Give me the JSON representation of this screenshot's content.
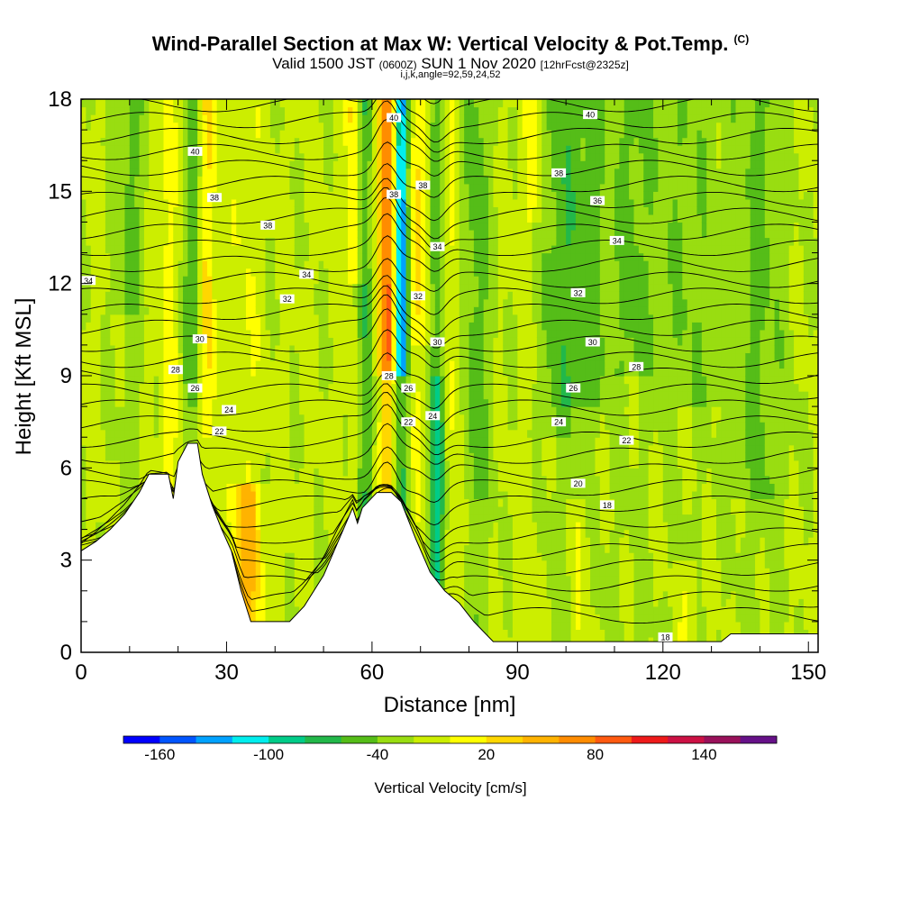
{
  "header": {
    "title": "Wind-Parallel Section at Max W: Vertical Velocity & Pot.Temp.",
    "title_mark": "(C)",
    "subtitle_a": "Valid 1500 JST ",
    "subtitle_b": "(0600Z)",
    "subtitle_c": " SUN 1 Nov 2020 ",
    "subtitle_d": "[12hrFcst@2325z]",
    "params": "i,j,k,angle=92,59,24,52"
  },
  "colorbar": {
    "title": "Vertical Velocity [cm/s]",
    "colors": [
      "#0000ff",
      "#0055ff",
      "#00a2ff",
      "#00eeee",
      "#00cc88",
      "#22b84a",
      "#55bd18",
      "#99dd11",
      "#ccee00",
      "#ffff00",
      "#ffd700",
      "#ffb300",
      "#ff8c00",
      "#ff5a10",
      "#ee1a1a",
      "#cc1144",
      "#99115a",
      "#661188"
    ],
    "tick_labels": [
      "-160",
      "-100",
      "-40",
      "20",
      "80",
      "140"
    ]
  },
  "chart_data": {
    "type": "heatmap",
    "title": "Wind-Parallel Section at Max W: Vertical Velocity & Pot.Temp.",
    "xlabel": "Distance [nm]",
    "ylabel": "Height [Kft MSL]",
    "xlim": [
      0,
      152
    ],
    "ylim": [
      0,
      18
    ],
    "x_ticks": [
      0,
      30,
      60,
      90,
      120,
      150
    ],
    "y_ticks": [
      0,
      3,
      6,
      9,
      12,
      15,
      18
    ],
    "legend": "bottom",
    "fill_variable": "Vertical Velocity [cm/s]",
    "fill_levels": [
      -160,
      -140,
      -120,
      -100,
      -80,
      -60,
      -40,
      -20,
      0,
      20,
      40,
      60,
      80,
      100,
      120,
      140,
      160
    ],
    "terrain_kft": [
      [
        0,
        3.3
      ],
      [
        3,
        3.6
      ],
      [
        6,
        4.0
      ],
      [
        9,
        4.5
      ],
      [
        12,
        5.2
      ],
      [
        14,
        5.8
      ],
      [
        18,
        5.8
      ],
      [
        19,
        5.0
      ],
      [
        20,
        6.2
      ],
      [
        22,
        6.8
      ],
      [
        24,
        6.8
      ],
      [
        25,
        5.8
      ],
      [
        27,
        4.8
      ],
      [
        29,
        4.0
      ],
      [
        31,
        3.3
      ],
      [
        33,
        2.0
      ],
      [
        35,
        1.0
      ],
      [
        40,
        1.0
      ],
      [
        43,
        1.0
      ],
      [
        46,
        1.5
      ],
      [
        50,
        2.5
      ],
      [
        53,
        3.6
      ],
      [
        56,
        4.7
      ],
      [
        57,
        4.2
      ],
      [
        58,
        4.7
      ],
      [
        61,
        5.2
      ],
      [
        64,
        5.2
      ],
      [
        66,
        4.9
      ],
      [
        69,
        3.7
      ],
      [
        72,
        2.6
      ],
      [
        75,
        2.0
      ],
      [
        78,
        1.6
      ],
      [
        81,
        1.0
      ],
      [
        85,
        0.35
      ],
      [
        90,
        0.35
      ],
      [
        100,
        0.35
      ],
      [
        120,
        0.35
      ],
      [
        132,
        0.35
      ],
      [
        134,
        0.6
      ],
      [
        140,
        0.6
      ],
      [
        146,
        0.6
      ],
      [
        152,
        0.6
      ]
    ],
    "isentrope_labels": [
      {
        "x": 64.5,
        "y": 17.4,
        "label": "40"
      },
      {
        "x": 105,
        "y": 17.5,
        "label": "40"
      },
      {
        "x": 23.5,
        "y": 16.3,
        "label": "40"
      },
      {
        "x": 27.5,
        "y": 14.8,
        "label": "38"
      },
      {
        "x": 38.5,
        "y": 13.9,
        "label": "38"
      },
      {
        "x": 64.5,
        "y": 14.9,
        "label": "38"
      },
      {
        "x": 70.5,
        "y": 15.2,
        "label": "38"
      },
      {
        "x": 98.5,
        "y": 15.6,
        "label": "38"
      },
      {
        "x": 106.5,
        "y": 14.7,
        "label": "36"
      },
      {
        "x": 1.5,
        "y": 12.1,
        "label": "34"
      },
      {
        "x": 46.5,
        "y": 12.3,
        "label": "34"
      },
      {
        "x": 73.5,
        "y": 13.2,
        "label": "34"
      },
      {
        "x": 110.5,
        "y": 13.4,
        "label": "34"
      },
      {
        "x": 42.5,
        "y": 11.5,
        "label": "32"
      },
      {
        "x": 69.5,
        "y": 11.6,
        "label": "32"
      },
      {
        "x": 102.5,
        "y": 11.7,
        "label": "32"
      },
      {
        "x": 24.5,
        "y": 10.2,
        "label": "30"
      },
      {
        "x": 73.5,
        "y": 10.1,
        "label": "30"
      },
      {
        "x": 105.5,
        "y": 10.1,
        "label": "30"
      },
      {
        "x": 19.5,
        "y": 9.2,
        "label": "28"
      },
      {
        "x": 63.5,
        "y": 9.0,
        "label": "28"
      },
      {
        "x": 114.5,
        "y": 9.3,
        "label": "28"
      },
      {
        "x": 23.5,
        "y": 8.6,
        "label": "26"
      },
      {
        "x": 67.5,
        "y": 8.6,
        "label": "26"
      },
      {
        "x": 101.5,
        "y": 8.6,
        "label": "26"
      },
      {
        "x": 30.5,
        "y": 7.9,
        "label": "24"
      },
      {
        "x": 72.5,
        "y": 7.7,
        "label": "24"
      },
      {
        "x": 98.5,
        "y": 7.5,
        "label": "24"
      },
      {
        "x": 67.5,
        "y": 7.5,
        "label": "22"
      },
      {
        "x": 28.5,
        "y": 7.2,
        "label": "22"
      },
      {
        "x": 112.5,
        "y": 6.9,
        "label": "22"
      },
      {
        "x": 102.5,
        "y": 5.5,
        "label": "20"
      },
      {
        "x": 108.5,
        "y": 4.8,
        "label": "18"
      },
      {
        "x": 120.5,
        "y": 0.5,
        "label": "18"
      }
    ]
  }
}
